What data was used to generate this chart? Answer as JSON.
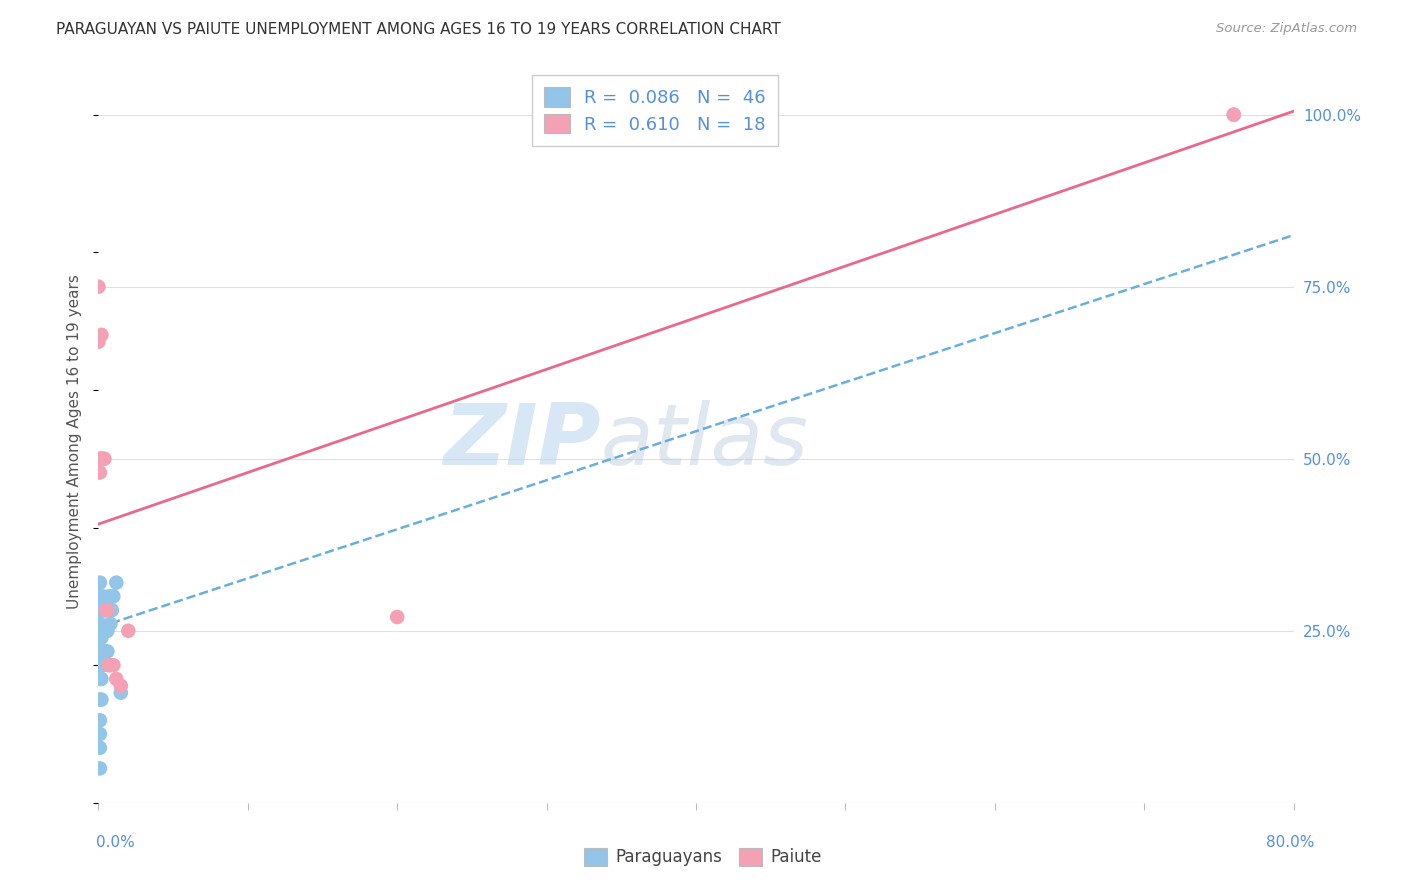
{
  "title": "PARAGUAYAN VS PAIUTE UNEMPLOYMENT AMONG AGES 16 TO 19 YEARS CORRELATION CHART",
  "source": "Source: ZipAtlas.com",
  "ylabel": "Unemployment Among Ages 16 to 19 years",
  "legend_label1": "Paraguayans",
  "legend_label2": "Paiute",
  "watermark_zip": "ZIP",
  "watermark_atlas": "atlas",
  "paraguayan_x": [
    0.0,
    0.0,
    0.0,
    0.0,
    0.0,
    0.001,
    0.001,
    0.001,
    0.001,
    0.001,
    0.001,
    0.001,
    0.001,
    0.001,
    0.001,
    0.001,
    0.001,
    0.001,
    0.002,
    0.002,
    0.002,
    0.002,
    0.002,
    0.002,
    0.003,
    0.003,
    0.003,
    0.003,
    0.003,
    0.004,
    0.004,
    0.004,
    0.005,
    0.005,
    0.005,
    0.006,
    0.006,
    0.007,
    0.007,
    0.008,
    0.008,
    0.009,
    0.01,
    0.012,
    0.015,
    0.76
  ],
  "paraguayan_y": [
    0.2,
    0.22,
    0.24,
    0.26,
    0.28,
    0.05,
    0.08,
    0.1,
    0.12,
    0.15,
    0.18,
    0.2,
    0.22,
    0.24,
    0.26,
    0.28,
    0.3,
    0.32,
    0.15,
    0.18,
    0.2,
    0.22,
    0.24,
    0.28,
    0.2,
    0.22,
    0.25,
    0.28,
    0.3,
    0.22,
    0.25,
    0.28,
    0.22,
    0.25,
    0.28,
    0.22,
    0.25,
    0.28,
    0.3,
    0.26,
    0.3,
    0.28,
    0.3,
    0.32,
    0.16,
    1.0
  ],
  "paiute_x": [
    0.0,
    0.0,
    0.001,
    0.001,
    0.002,
    0.002,
    0.003,
    0.004,
    0.005,
    0.006,
    0.007,
    0.008,
    0.01,
    0.012,
    0.015,
    0.02,
    0.2,
    0.76
  ],
  "paiute_y": [
    0.75,
    0.67,
    0.5,
    0.48,
    0.5,
    0.68,
    0.5,
    0.5,
    0.28,
    0.28,
    0.2,
    0.2,
    0.2,
    0.18,
    0.17,
    0.25,
    0.27,
    1.0
  ],
  "paraguayan_color": "#92c5e8",
  "paiute_color": "#f4a0b5",
  "trend_paraguayan_color": "#6aaedd",
  "trend_paiute_color": "#e8698a",
  "background_color": "#ffffff",
  "grid_color": "#e0e0e0",
  "title_color": "#333333",
  "axis_label_color": "#5590dd",
  "source_color": "#999999",
  "xmin": 0.0,
  "xmax": 0.8,
  "ymin": 0.0,
  "ymax": 1.05,
  "par_trend_x": [
    0.0,
    0.8
  ],
  "par_trend_y": [
    0.255,
    0.825
  ],
  "pai_trend_x": [
    0.0,
    0.8
  ],
  "pai_trend_y": [
    0.405,
    1.005
  ]
}
